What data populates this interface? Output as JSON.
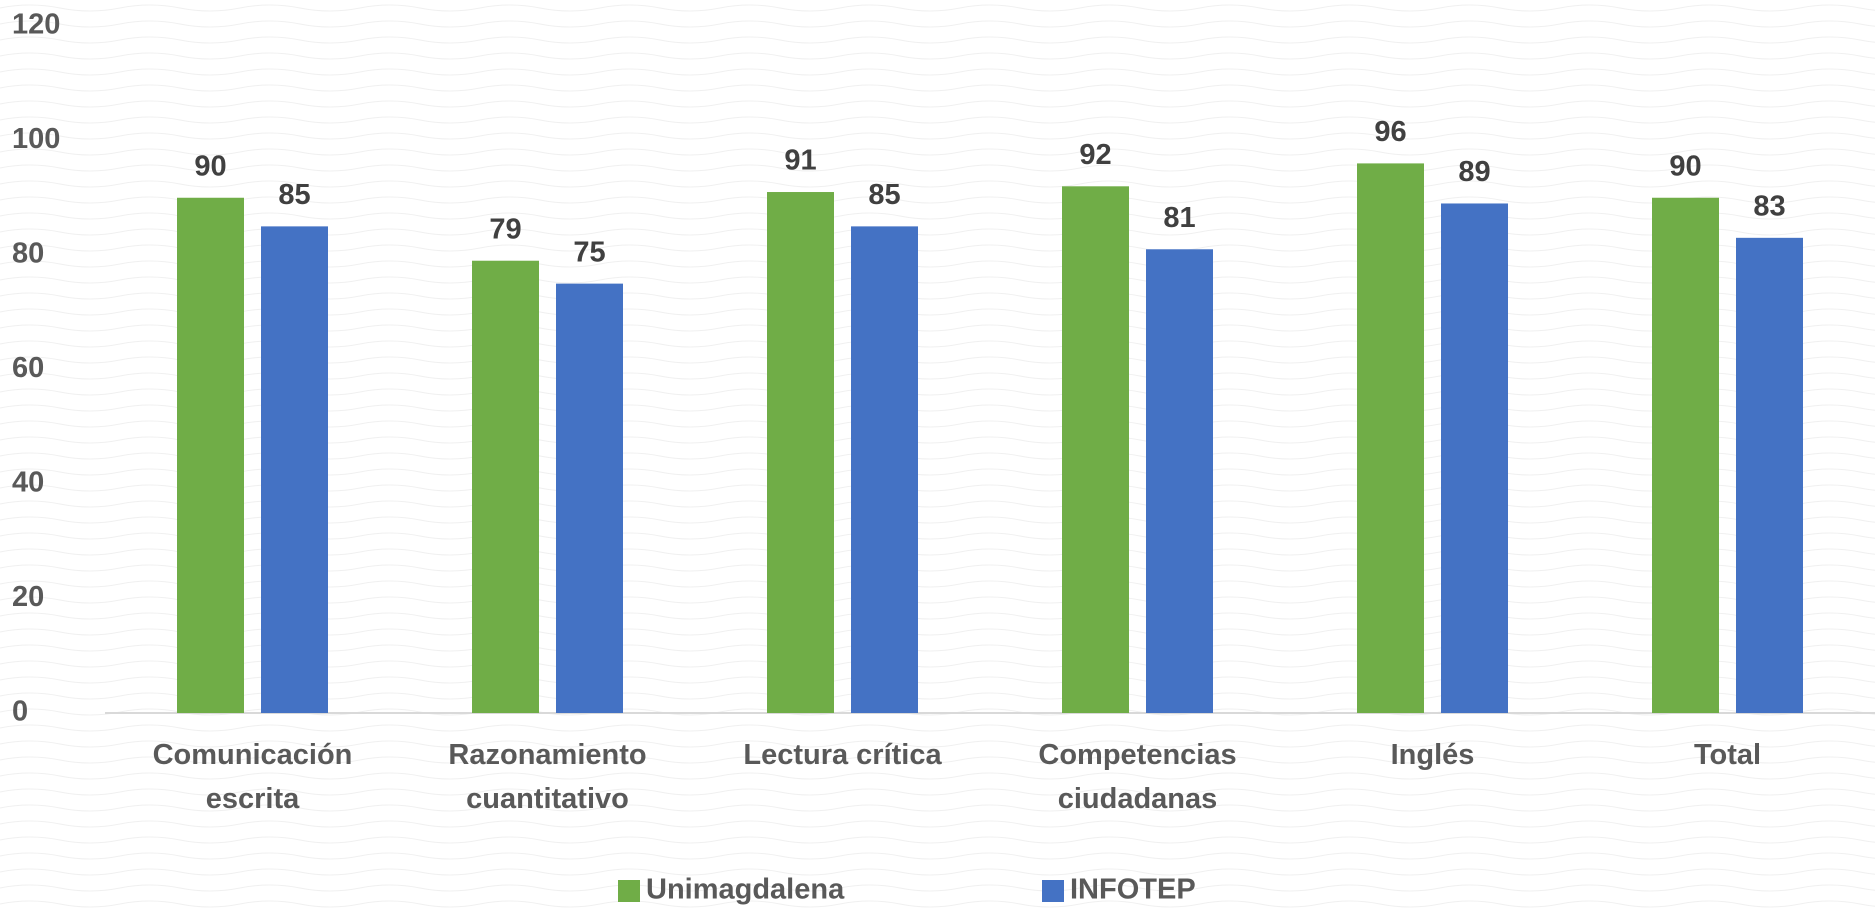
{
  "chart_data": {
    "type": "bar",
    "categories": [
      "Comunicación escrita",
      "Razonamiento cuantitativo",
      "Lectura crítica",
      "Competencias ciudadanas",
      "Inglés",
      "Total"
    ],
    "series": [
      {
        "name": "Unimagdalena",
        "color": "#70ad47",
        "values": [
          90,
          79,
          91,
          92,
          96,
          90
        ]
      },
      {
        "name": "INFOTEP",
        "color": "#4472c4",
        "values": [
          85,
          75,
          85,
          81,
          89,
          83
        ]
      }
    ],
    "ylim": [
      0,
      120
    ],
    "yticks": [
      0,
      20,
      40,
      60,
      80,
      100,
      120
    ],
    "grid": false,
    "legend": "bottom"
  }
}
